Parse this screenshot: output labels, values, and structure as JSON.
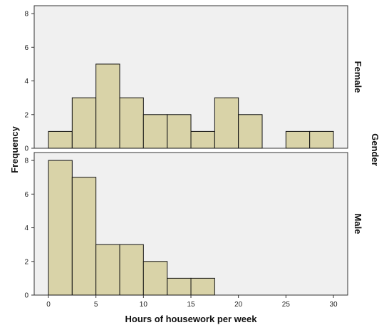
{
  "chart_data": {
    "type": "bar",
    "xlabel": "Hours of housework per week",
    "ylabel": "Frequency",
    "facet_label": "Gender",
    "bin_width": 2.5,
    "xlim": [
      -1.5,
      31.5
    ],
    "x_ticks": [
      0,
      5,
      10,
      15,
      20,
      25,
      30
    ],
    "bar_color": "#d9d3a8",
    "bar_edge_color": "#111111",
    "panel_color": "#f0f0f0",
    "grid": false,
    "panels": [
      {
        "name": "Female",
        "ylim": [
          0,
          8.3
        ],
        "y_ticks": [
          0,
          2,
          4,
          6,
          8
        ],
        "bins": [
          {
            "start": 0.0,
            "end": 2.5,
            "count": 1
          },
          {
            "start": 2.5,
            "end": 5.0,
            "count": 3
          },
          {
            "start": 5.0,
            "end": 7.5,
            "count": 5
          },
          {
            "start": 7.5,
            "end": 10.0,
            "count": 3
          },
          {
            "start": 10.0,
            "end": 12.5,
            "count": 2
          },
          {
            "start": 12.5,
            "end": 15.0,
            "count": 2
          },
          {
            "start": 15.0,
            "end": 17.5,
            "count": 1
          },
          {
            "start": 17.5,
            "end": 20.0,
            "count": 3
          },
          {
            "start": 20.0,
            "end": 22.5,
            "count": 2
          },
          {
            "start": 22.5,
            "end": 25.0,
            "count": 0
          },
          {
            "start": 25.0,
            "end": 27.5,
            "count": 1
          },
          {
            "start": 27.5,
            "end": 30.0,
            "count": 1
          }
        ]
      },
      {
        "name": "Male",
        "ylim": [
          0,
          8.3
        ],
        "y_ticks": [
          0,
          2,
          4,
          6,
          8
        ],
        "bins": [
          {
            "start": 0.0,
            "end": 2.5,
            "count": 8
          },
          {
            "start": 2.5,
            "end": 5.0,
            "count": 7
          },
          {
            "start": 5.0,
            "end": 7.5,
            "count": 3
          },
          {
            "start": 7.5,
            "end": 10.0,
            "count": 3
          },
          {
            "start": 10.0,
            "end": 12.5,
            "count": 2
          },
          {
            "start": 12.5,
            "end": 15.0,
            "count": 1
          },
          {
            "start": 15.0,
            "end": 17.5,
            "count": 1
          }
        ]
      }
    ]
  }
}
